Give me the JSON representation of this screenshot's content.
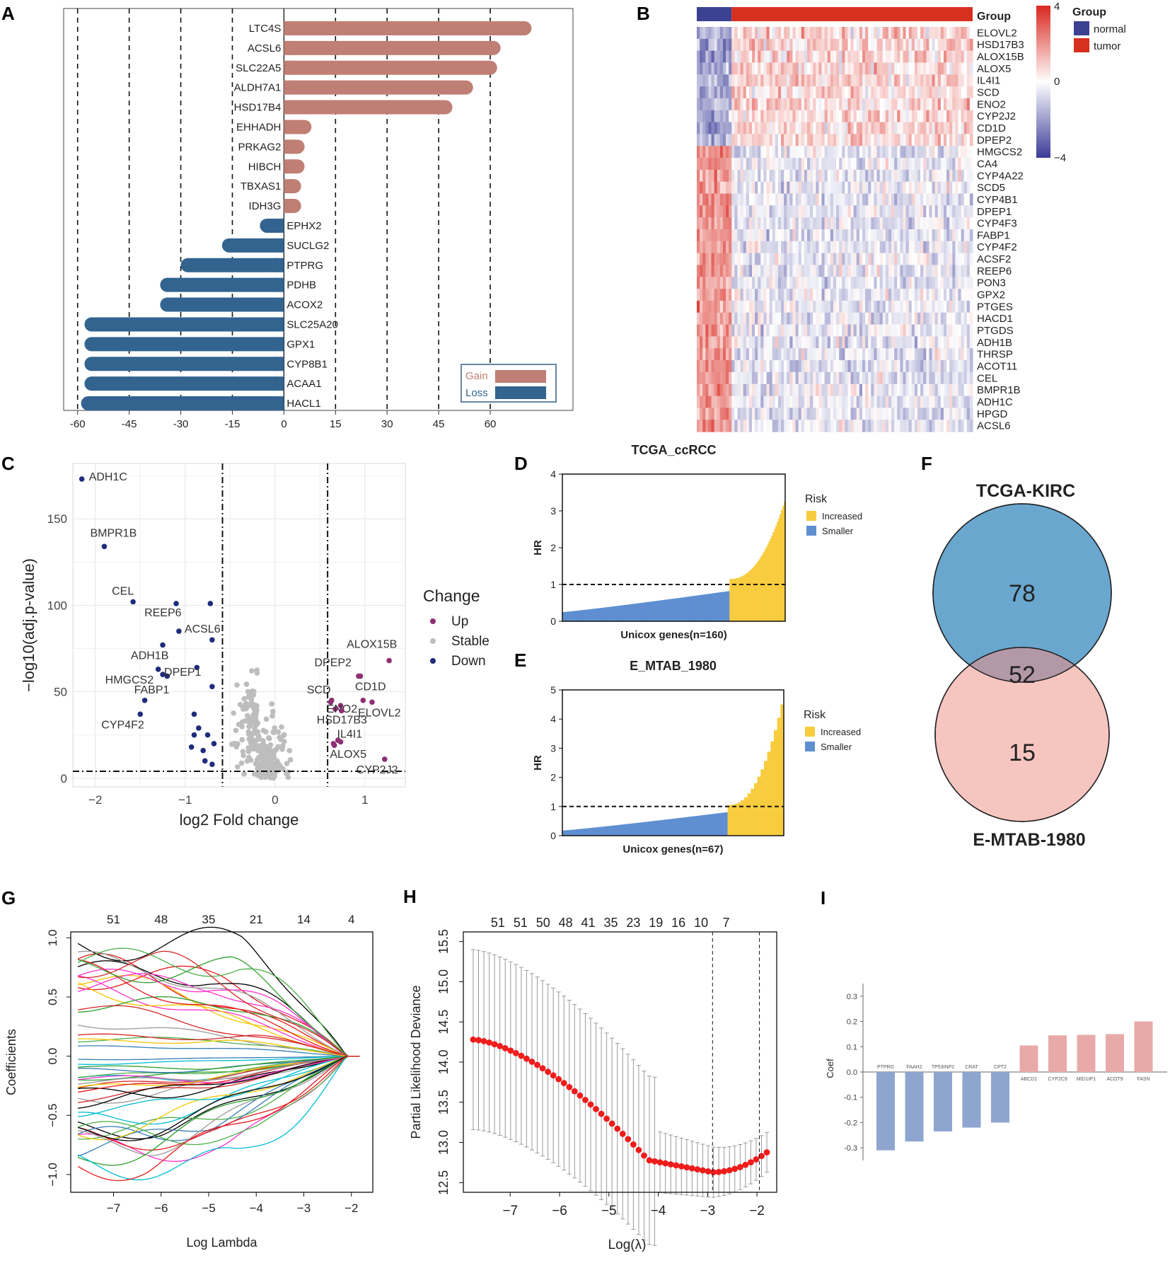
{
  "panel_letters": [
    "A",
    "B",
    "C",
    "D",
    "E",
    "F",
    "G",
    "H",
    "I"
  ],
  "colors": {
    "gain": "#c07f74",
    "loss": "#32648f",
    "heat_high": "#d9281f",
    "heat_low": "#3b3c98",
    "heat_mid": "#ffffff",
    "normal": "#3d4192",
    "tumor": "#d7301f",
    "up": "#8e2f73",
    "stable": "#bdbdbd",
    "down": "#1f2c7c",
    "increased": "#f8cc3f",
    "smaller": "#5f8fd1",
    "venn_a": "#6aa7cf",
    "venn_b": "#f7c5c0",
    "venn_overlap": "#b398a8",
    "coef_pos": "#e8aaa8",
    "coef_neg": "#8ea6cf",
    "cv_point": "#ee1c1c"
  },
  "chart_data": [
    {
      "panel": "A",
      "type": "bar",
      "orientation": "horizontal",
      "categories": [
        "LTC4S",
        "ACSL6",
        "SLC22A5",
        "ALDH7A1",
        "HSD17B4",
        "EHHADH",
        "PRKAG2",
        "HIBCH",
        "TBXAS1",
        "IDH3G",
        "EPHX2",
        "SUCLG2",
        "PTPRG",
        "PDHB",
        "ACOX2",
        "SLC25A20",
        "GPX1",
        "CYP8B1",
        "ACAA1",
        "HACL1"
      ],
      "values": [
        72,
        63,
        62,
        55,
        49,
        8,
        6,
        6,
        5,
        5,
        -7,
        -18,
        -30,
        -36,
        -36,
        -58,
        -58,
        -58,
        -58,
        -59
      ],
      "ticks": [
        "-60",
        "-45",
        "-30",
        "-15",
        "0",
        "15",
        "30",
        "45",
        "60"
      ],
      "xlim": [
        -62,
        82
      ],
      "legend": [
        "Gain",
        "Loss"
      ]
    },
    {
      "panel": "B",
      "type": "heatmap",
      "rows": [
        "ELOVL2",
        "HSD17B3",
        "ALOX15B",
        "ALOX5",
        "IL4I1",
        "SCD",
        "ENO2",
        "CYP2J2",
        "CD1D",
        "DPEP2",
        "HMGCS2",
        "CA4",
        "CYP4A22",
        "SCD5",
        "CYP4B1",
        "DPEP1",
        "CYP4F3",
        "FABP1",
        "CYP4F2",
        "ACSF2",
        "REEP6",
        "PON3",
        "GPX2",
        "PTGES",
        "HACD1",
        "PTGDS",
        "ADH1B",
        "THRSP",
        "ACOT11",
        "CEL",
        "BMPR1B",
        "ADH1C",
        "HPGD",
        "ACSL6"
      ],
      "annotation_title": "Group",
      "groups": [
        "normal",
        "tumor"
      ],
      "scale_ticks": [
        "4",
        "0",
        "−4"
      ],
      "scale_range": [
        -4,
        4
      ]
    },
    {
      "panel": "C",
      "type": "scatter",
      "xlabel": "log2 Fold change",
      "ylabel": "−log10(adj.p-value)",
      "xticks": [
        "−2",
        "−1",
        "0",
        "1"
      ],
      "yticks": [
        "0",
        "50",
        "100",
        "150"
      ],
      "xlim": [
        -2.25,
        1.45
      ],
      "ylim": [
        -5,
        182
      ],
      "thresholds": {
        "x": [
          -0.585,
          0.585
        ],
        "y": 4
      },
      "legend_title": "Change",
      "legend": [
        "Up",
        "Stable",
        "Down"
      ],
      "labeled_points": [
        {
          "gene": "ADH1C",
          "x": -2.15,
          "y": 173,
          "change": "Down"
        },
        {
          "gene": "BMPR1B",
          "x": -1.9,
          "y": 134,
          "change": "Down"
        },
        {
          "gene": "CEL",
          "x": -1.58,
          "y": 102,
          "change": "Down"
        },
        {
          "gene": "REEP6",
          "x": -1.1,
          "y": 101,
          "change": "Down"
        },
        {
          "gene": "ACSL6",
          "x": -1.07,
          "y": 85,
          "change": "Down"
        },
        {
          "gene": "ADH1B",
          "x": -1.25,
          "y": 77,
          "change": "Down"
        },
        {
          "gene": "HMGCS2",
          "x": -1.3,
          "y": 63,
          "change": "Down"
        },
        {
          "gene": "DPEP1",
          "x": -1.25,
          "y": 60,
          "change": "Down"
        },
        {
          "gene": "FABP1",
          "x": -1.45,
          "y": 45,
          "change": "Down"
        },
        {
          "gene": "CYP4F2",
          "x": -1.5,
          "y": 37,
          "change": "Down"
        },
        {
          "gene": "ALOX15B",
          "x": 1.27,
          "y": 68,
          "change": "Up"
        },
        {
          "gene": "DPEP2",
          "x": 0.95,
          "y": 59,
          "change": "Up"
        },
        {
          "gene": "CD1D",
          "x": 0.93,
          "y": 59,
          "change": "Up"
        },
        {
          "gene": "SCD",
          "x": 0.63,
          "y": 45,
          "change": "Up"
        },
        {
          "gene": "ENO2",
          "x": 0.73,
          "y": 42,
          "change": "Up"
        },
        {
          "gene": "ELOVL2",
          "x": 1.08,
          "y": 44,
          "change": "Up"
        },
        {
          "gene": "HSD17B3",
          "x": 0.74,
          "y": 39,
          "change": "Up"
        },
        {
          "gene": "IL4I1",
          "x": 0.73,
          "y": 21,
          "change": "Up"
        },
        {
          "gene": "ALOX5",
          "x": 0.65,
          "y": 20,
          "change": "Up"
        },
        {
          "gene": "CYP2J2",
          "x": 1.22,
          "y": 11,
          "change": "Up"
        }
      ],
      "extra_down_points": [
        [
          -0.72,
          101
        ],
        [
          -0.7,
          80
        ],
        [
          -0.7,
          53
        ],
        [
          -0.87,
          64
        ],
        [
          -0.9,
          37
        ],
        [
          -1.2,
          59
        ],
        [
          -0.85,
          29
        ],
        [
          -0.75,
          25
        ],
        [
          -0.68,
          20
        ],
        [
          -0.8,
          16
        ],
        [
          -0.7,
          8
        ],
        [
          -0.78,
          10
        ],
        [
          -0.93,
          18
        ],
        [
          -0.9,
          25
        ]
      ],
      "extra_up_points": [
        [
          0.62,
          44
        ],
        [
          0.67,
          40
        ],
        [
          0.7,
          22
        ],
        [
          0.66,
          19
        ],
        [
          0.98,
          45
        ]
      ]
    },
    {
      "panel": "D",
      "type": "bar",
      "title": "TCGA_ccRCC",
      "xlabel": "Unicox genes(n=160)",
      "ylabel": "HR",
      "n": 160,
      "n_increased": 40,
      "yticks": [
        "0",
        "1",
        "2",
        "3",
        "4"
      ],
      "ylim": [
        0,
        4
      ],
      "reference_line": 1,
      "legend_title": "Risk",
      "legend": [
        "Increased",
        "Smaller"
      ],
      "smaller_range": [
        0.25,
        0.82
      ],
      "increased_range": [
        1.15,
        3.25
      ]
    },
    {
      "panel": "E",
      "type": "bar",
      "title": "E_MTAB_1980",
      "xlabel": "Unicox genes(n=67)",
      "ylabel": "HR",
      "n": 67,
      "n_increased": 17,
      "yticks": [
        "0",
        "1",
        "2",
        "3",
        "4",
        "5"
      ],
      "ylim": [
        0,
        5
      ],
      "reference_line": 1,
      "legend_title": "Risk",
      "legend": [
        "Increased",
        "Smaller"
      ],
      "smaller_range": [
        0.18,
        0.8
      ],
      "increased_range": [
        1.05,
        4.5
      ]
    },
    {
      "panel": "F",
      "type": "venn",
      "sets": [
        "TCGA-KIRC",
        "E-MTAB-1980"
      ],
      "only_a": "78",
      "overlap": "52",
      "only_b": "15"
    },
    {
      "panel": "G",
      "type": "line",
      "xlabel": "Log Lambda",
      "ylabel": "Coefficients",
      "xticks": [
        "−7",
        "−6",
        "−5",
        "−4",
        "−3",
        "−2"
      ],
      "yticks": [
        "−1.0",
        "−0.5",
        "0.0",
        "0.5",
        "1.0"
      ],
      "top_ticks": [
        "51",
        "48",
        "35",
        "21",
        "14",
        "4"
      ],
      "xlim": [
        -7.9,
        -1.55
      ],
      "ylim": [
        -1.15,
        1.05
      ],
      "n_paths": 52
    },
    {
      "panel": "H",
      "type": "line",
      "xlabel": "Log(λ)",
      "ylabel": "Partial Likelihood Deviance",
      "xticks": [
        "−7",
        "−6",
        "−5",
        "−4",
        "−3",
        "−2"
      ],
      "yticks": [
        "12.5",
        "13.0",
        "13.5",
        "14.0",
        "14.5",
        "15.0",
        "15.5"
      ],
      "top_ticks": [
        "51",
        "51",
        "50",
        "48",
        "41",
        "35",
        "23",
        "19",
        "16",
        "10",
        "7"
      ],
      "xlim": [
        -7.95,
        -1.6
      ],
      "ylim": [
        12.38,
        15.62
      ],
      "lambda_min": -2.9,
      "lambda_1se": -1.95,
      "start_value": 14.28,
      "min_value": 12.63,
      "end_value": 12.9
    },
    {
      "panel": "I",
      "type": "bar",
      "ylabel": "Coef",
      "categories": [
        "PTPRG",
        "FAAH2",
        "TP53INP2",
        "CRAT",
        "CPT2",
        "ABCD1",
        "CYP2C9",
        "MID1IP1",
        "ACOT9",
        "FASN"
      ],
      "values": [
        -0.31,
        -0.275,
        -0.235,
        -0.22,
        -0.2,
        0.105,
        0.145,
        0.147,
        0.15,
        0.2
      ],
      "yticks": [
        "0.3",
        "0.2",
        "0.1",
        "0.0",
        "-0.1",
        "-0.2",
        "-0.3"
      ],
      "ylim": [
        -0.35,
        0.35
      ]
    }
  ]
}
